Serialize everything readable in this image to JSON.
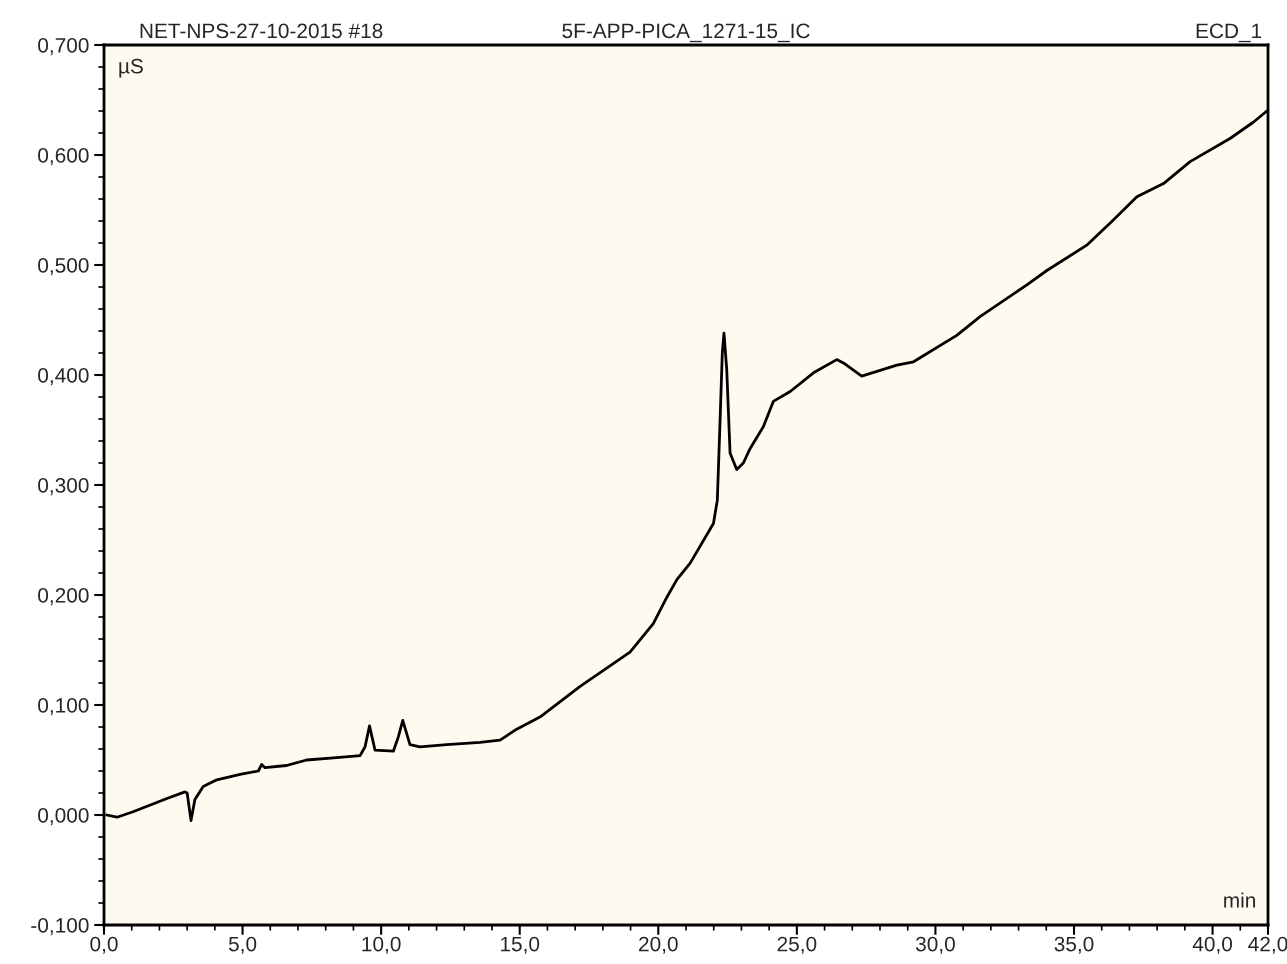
{
  "chart_data": {
    "type": "line",
    "title": "5F-APP-PICA_1271-15_IC",
    "annotations": [
      "NET-NPS-27-10-2015 #18",
      "ECD_1"
    ],
    "xlabel": "min",
    "ylabel": "µS",
    "series": [
      {
        "color": "#000000",
        "x": [
          0.1,
          0.47,
          1.05,
          2.27,
          2.92,
          3.0,
          3.14,
          3.28,
          3.58,
          4.07,
          4.91,
          5.57,
          5.69,
          5.81,
          6.59,
          7.31,
          8.28,
          9.24,
          9.42,
          9.58,
          9.78,
          10.44,
          10.62,
          10.78,
          11.04,
          11.4,
          12.37,
          13.57,
          14.29,
          14.89,
          15.73,
          17.18,
          18.98,
          19.82,
          20.31,
          20.67,
          21.15,
          21.99,
          22.13,
          22.23,
          22.31,
          22.37,
          22.47,
          22.59,
          22.83,
          23.07,
          23.31,
          23.79,
          24.15,
          24.76,
          25.6,
          26.44,
          26.68,
          27.34,
          28.61,
          29.21,
          30.77,
          31.61,
          33.3,
          34.02,
          35.46,
          36.42,
          37.27,
          38.23,
          39.19,
          40.63,
          41.48,
          41.96
        ],
        "values": [
          0.0,
          -0.002,
          0.003,
          0.015,
          0.021,
          0.02,
          -0.005,
          0.014,
          0.026,
          0.032,
          0.037,
          0.04,
          0.046,
          0.043,
          0.045,
          0.05,
          0.052,
          0.054,
          0.062,
          0.081,
          0.059,
          0.058,
          0.071,
          0.086,
          0.064,
          0.062,
          0.064,
          0.066,
          0.068,
          0.078,
          0.089,
          0.117,
          0.148,
          0.174,
          0.198,
          0.214,
          0.229,
          0.265,
          0.286,
          0.359,
          0.42,
          0.438,
          0.405,
          0.329,
          0.314,
          0.32,
          0.333,
          0.353,
          0.376,
          0.385,
          0.402,
          0.414,
          0.411,
          0.399,
          0.409,
          0.412,
          0.436,
          0.453,
          0.482,
          0.495,
          0.518,
          0.541,
          0.562,
          0.574,
          0.594,
          0.615,
          0.63,
          0.64
        ]
      }
    ],
    "xlim": [
      0,
      42
    ],
    "ylim": [
      -0.1,
      0.7
    ],
    "xticks": [
      {
        "value": 0,
        "label": "0,0"
      },
      {
        "value": 1,
        "label": null
      },
      {
        "value": 2,
        "label": null
      },
      {
        "value": 3,
        "label": null
      },
      {
        "value": 4,
        "label": null
      },
      {
        "value": 5,
        "label": "5,0"
      },
      {
        "value": 6,
        "label": null
      },
      {
        "value": 7,
        "label": null
      },
      {
        "value": 8,
        "label": null
      },
      {
        "value": 9,
        "label": null
      },
      {
        "value": 10,
        "label": "10,0"
      },
      {
        "value": 11,
        "label": null
      },
      {
        "value": 12,
        "label": null
      },
      {
        "value": 13,
        "label": null
      },
      {
        "value": 14,
        "label": null
      },
      {
        "value": 15,
        "label": "15,0"
      },
      {
        "value": 16,
        "label": null
      },
      {
        "value": 17,
        "label": null
      },
      {
        "value": 18,
        "label": null
      },
      {
        "value": 19,
        "label": null
      },
      {
        "value": 20,
        "label": "20,0"
      },
      {
        "value": 21,
        "label": null
      },
      {
        "value": 22,
        "label": null
      },
      {
        "value": 23,
        "label": null
      },
      {
        "value": 24,
        "label": null
      },
      {
        "value": 25,
        "label": "25,0"
      },
      {
        "value": 26,
        "label": null
      },
      {
        "value": 27,
        "label": null
      },
      {
        "value": 28,
        "label": null
      },
      {
        "value": 29,
        "label": null
      },
      {
        "value": 30,
        "label": "30,0"
      },
      {
        "value": 31,
        "label": null
      },
      {
        "value": 32,
        "label": null
      },
      {
        "value": 33,
        "label": null
      },
      {
        "value": 34,
        "label": null
      },
      {
        "value": 35,
        "label": "35,0"
      },
      {
        "value": 36,
        "label": null
      },
      {
        "value": 37,
        "label": null
      },
      {
        "value": 38,
        "label": null
      },
      {
        "value": 39,
        "label": null
      },
      {
        "value": 40,
        "label": "40,0"
      },
      {
        "value": 41,
        "label": null
      },
      {
        "value": 42,
        "label": "42,0"
      }
    ],
    "yticks": [
      {
        "value": -0.1,
        "label": "-0,100"
      },
      {
        "value": -0.08,
        "label": null
      },
      {
        "value": -0.06,
        "label": null
      },
      {
        "value": -0.04,
        "label": null
      },
      {
        "value": -0.02,
        "label": null
      },
      {
        "value": 0,
        "label": "0,000"
      },
      {
        "value": 0.02,
        "label": null
      },
      {
        "value": 0.04,
        "label": null
      },
      {
        "value": 0.06,
        "label": null
      },
      {
        "value": 0.08,
        "label": null
      },
      {
        "value": 0.1,
        "label": "0,100"
      },
      {
        "value": 0.12,
        "label": null
      },
      {
        "value": 0.14,
        "label": null
      },
      {
        "value": 0.16,
        "label": null
      },
      {
        "value": 0.18,
        "label": null
      },
      {
        "value": 0.2,
        "label": "0,200"
      },
      {
        "value": 0.22,
        "label": null
      },
      {
        "value": 0.24,
        "label": null
      },
      {
        "value": 0.26,
        "label": null
      },
      {
        "value": 0.28,
        "label": null
      },
      {
        "value": 0.3,
        "label": "0,300"
      },
      {
        "value": 0.32,
        "label": null
      },
      {
        "value": 0.34,
        "label": null
      },
      {
        "value": 0.36,
        "label": null
      },
      {
        "value": 0.38,
        "label": null
      },
      {
        "value": 0.4,
        "label": "0,400"
      },
      {
        "value": 0.42,
        "label": null
      },
      {
        "value": 0.44,
        "label": null
      },
      {
        "value": 0.46,
        "label": null
      },
      {
        "value": 0.48,
        "label": null
      },
      {
        "value": 0.5,
        "label": "0,500"
      },
      {
        "value": 0.52,
        "label": null
      },
      {
        "value": 0.54,
        "label": null
      },
      {
        "value": 0.56,
        "label": null
      },
      {
        "value": 0.58,
        "label": null
      },
      {
        "value": 0.6,
        "label": "0,600"
      },
      {
        "value": 0.62,
        "label": null
      },
      {
        "value": 0.64,
        "label": null
      },
      {
        "value": 0.66,
        "label": null
      },
      {
        "value": 0.68,
        "label": null
      },
      {
        "value": 0.7,
        "label": "0,700"
      }
    ],
    "grid": false,
    "legend": false
  }
}
